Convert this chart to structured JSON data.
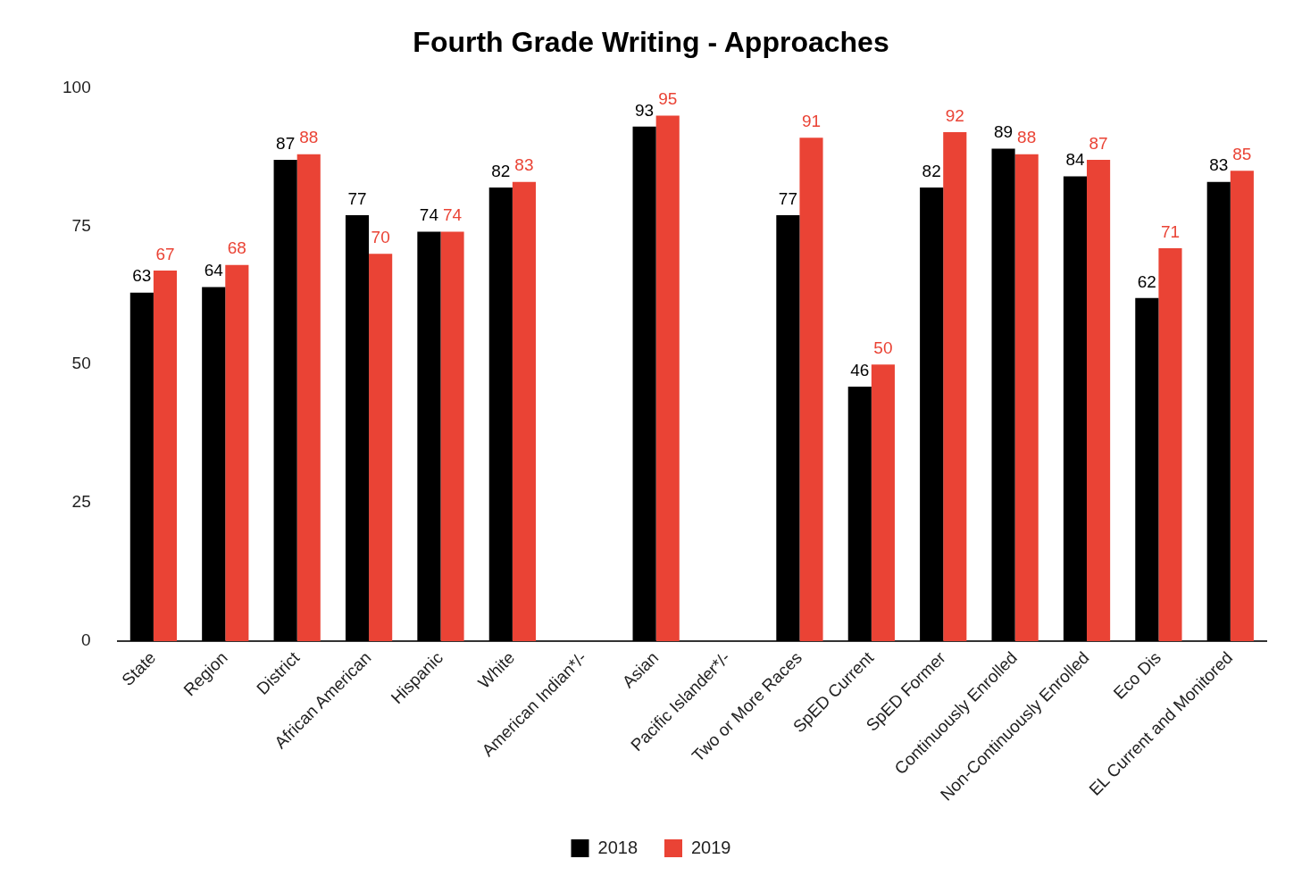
{
  "chart_data": {
    "type": "bar",
    "title": "Fourth Grade Writing - Approaches",
    "categories": [
      "State",
      "Region",
      "District",
      "African American",
      "Hispanic",
      "White",
      "American Indian*/-",
      "Asian",
      "Pacific Islander*/-",
      "Two or More Races",
      "SpED Current",
      "SpED Former",
      "Continuously Enrolled",
      "Non-Continuously Enrolled",
      "Eco Dis",
      "EL Current and Monitored"
    ],
    "series": [
      {
        "name": "2018",
        "color": "#000000",
        "values": [
          63,
          64,
          87,
          77,
          74,
          82,
          null,
          93,
          null,
          77,
          46,
          82,
          89,
          84,
          62,
          83
        ]
      },
      {
        "name": "2019",
        "color": "#ea4335",
        "values": [
          67,
          68,
          88,
          70,
          74,
          83,
          null,
          95,
          null,
          91,
          50,
          92,
          88,
          87,
          71,
          85
        ]
      }
    ],
    "ylim": [
      0,
      100
    ],
    "yticks": [
      0,
      25,
      50,
      75,
      100
    ],
    "grid": false,
    "legend": "bottom",
    "data_labels": true
  }
}
